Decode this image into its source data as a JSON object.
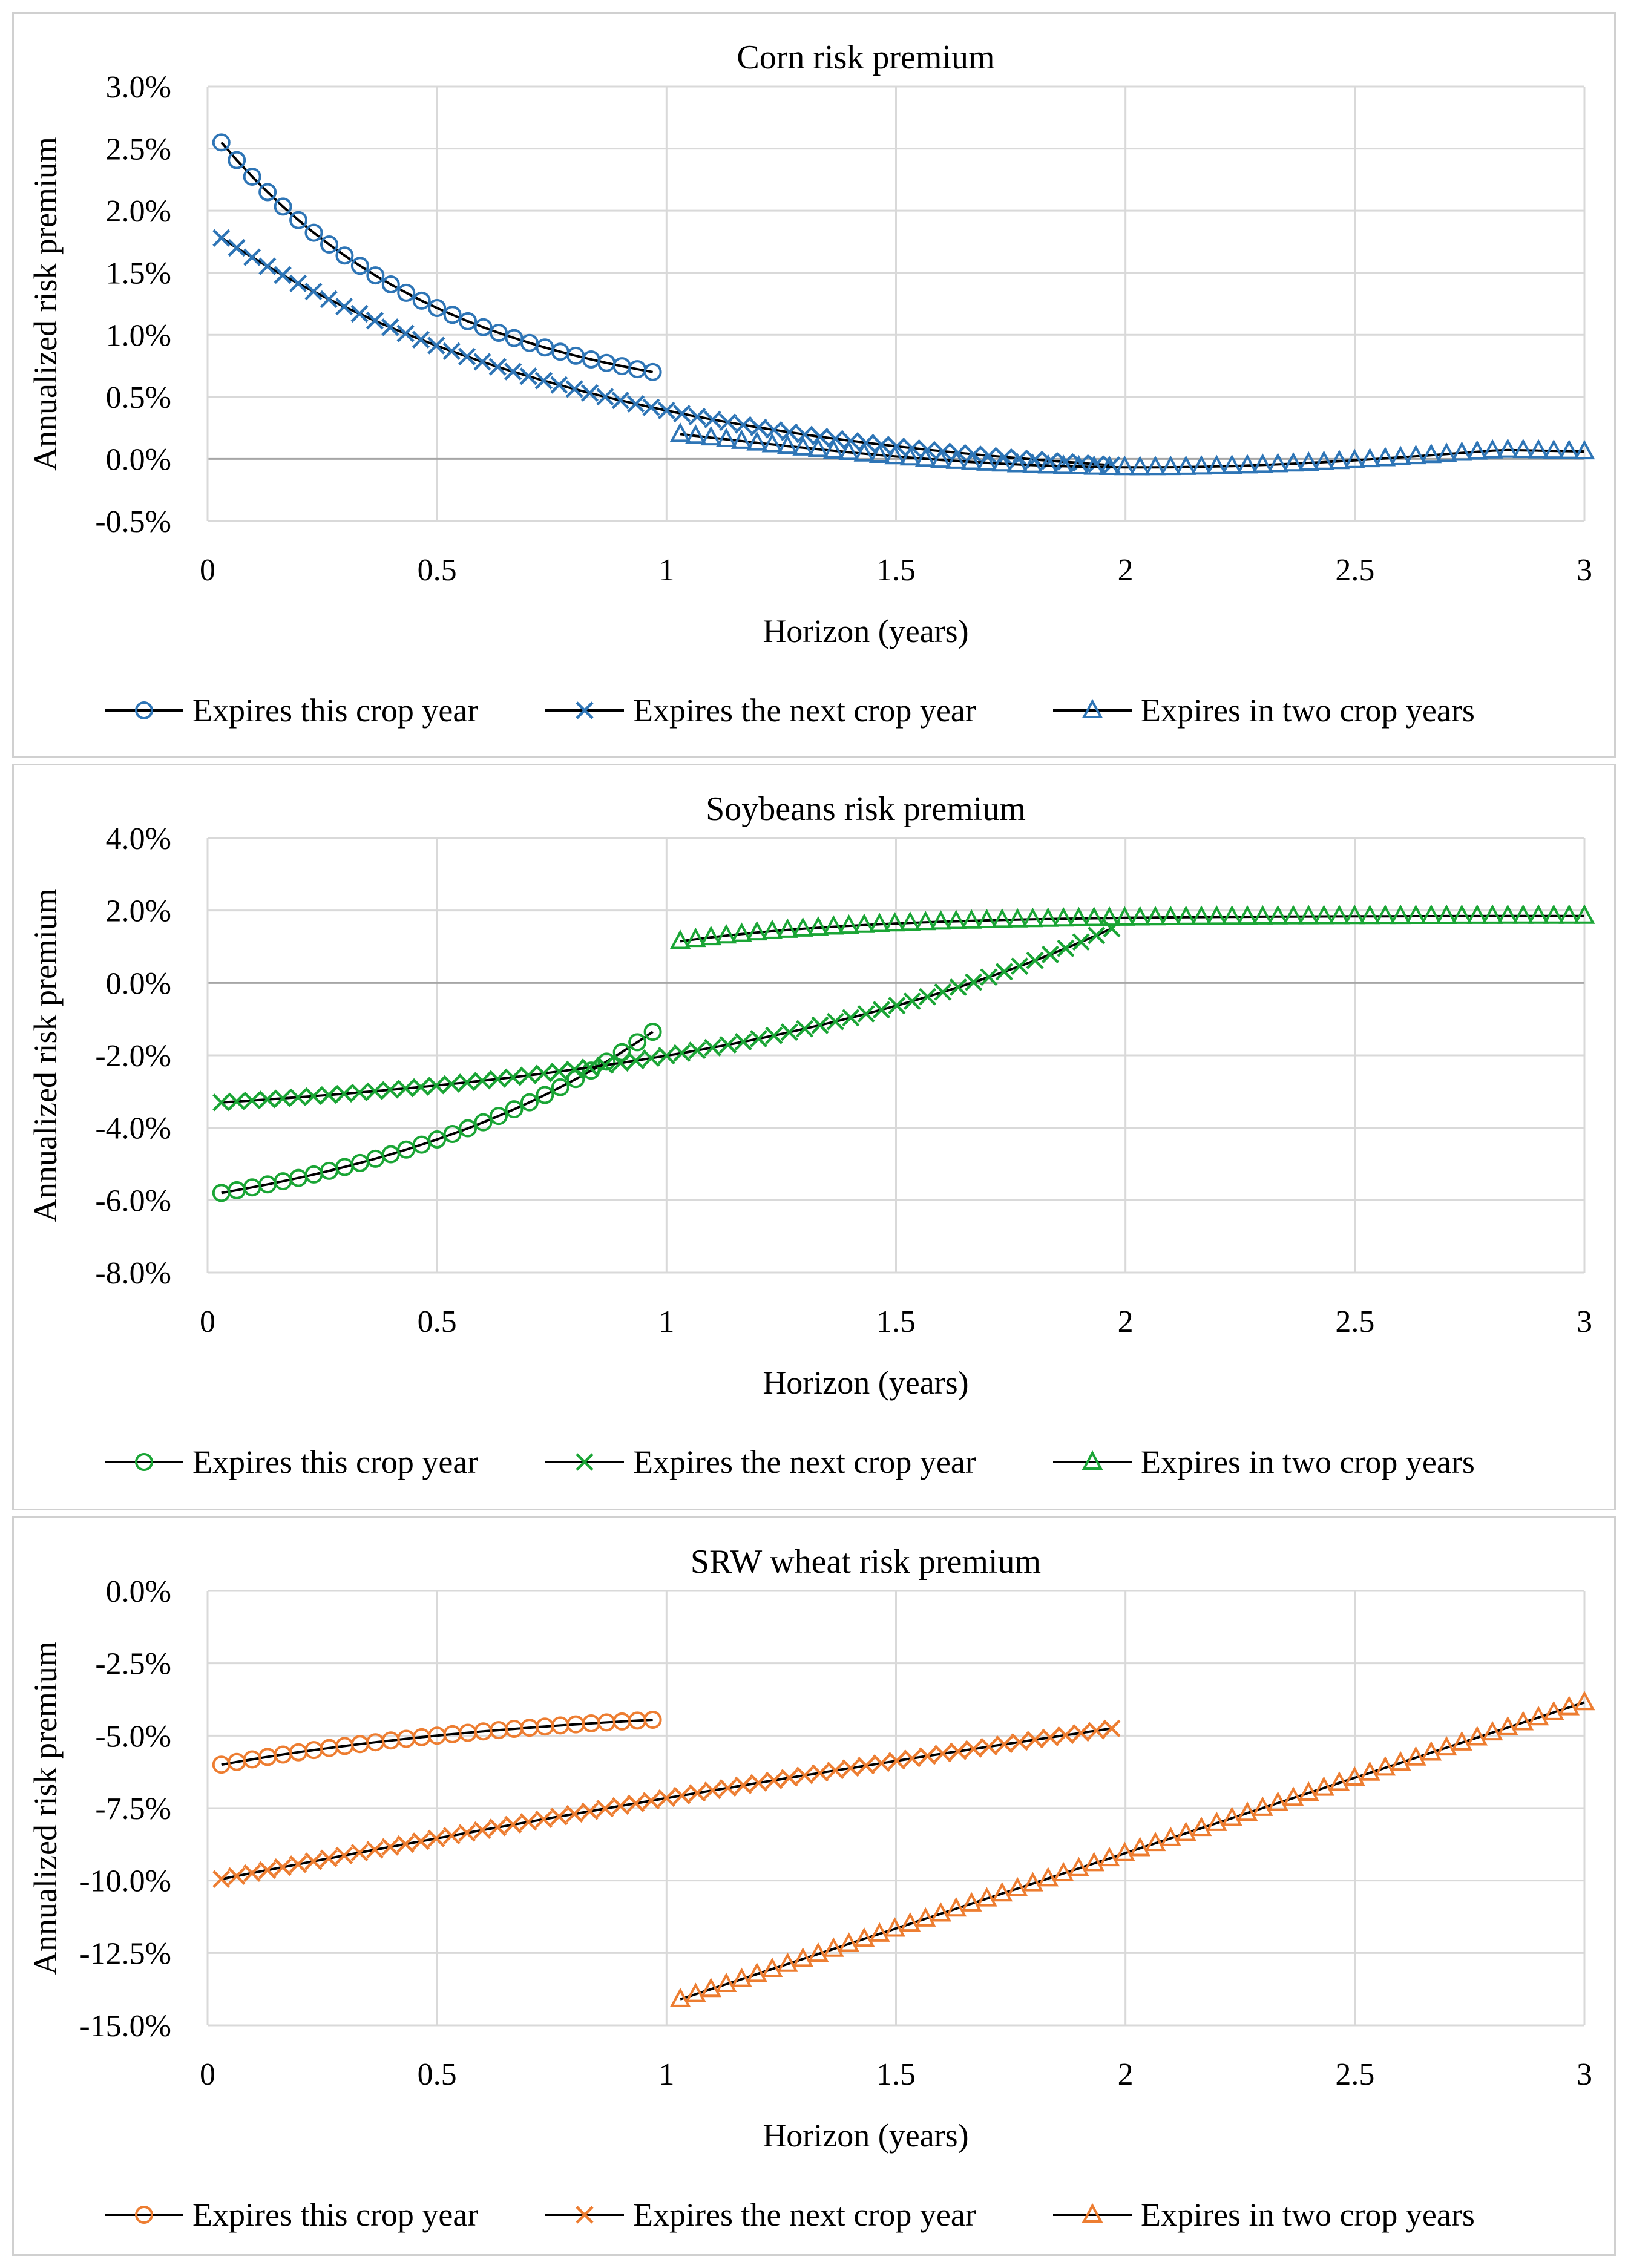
{
  "chart_data": [
    {
      "type": "line",
      "title": "Corn risk premium",
      "xlabel": "Horizon (years)",
      "ylabel": "Annualized risk premium",
      "xlim": [
        0,
        3
      ],
      "ylim": [
        -0.5,
        3.0
      ],
      "x_ticks": [
        0,
        0.5,
        1,
        1.5,
        2,
        2.5,
        3
      ],
      "x_tick_labels": [
        "0",
        "0.5",
        "1",
        "1.5",
        "2",
        "2.5",
        "3"
      ],
      "y_ticks": [
        -0.5,
        0,
        0.5,
        1,
        1.5,
        2,
        2.5,
        3
      ],
      "y_tick_labels": [
        "-0.5%",
        "0.0%",
        "0.5%",
        "1.0%",
        "1.5%",
        "2.0%",
        "2.5%",
        "3.0%"
      ],
      "gridlines": true,
      "legend_position": "bottom",
      "color": "#2e75b6",
      "series": [
        {
          "name": "Expires this crop year",
          "marker": "circle",
          "x_start": 0.03,
          "x_end": 0.97,
          "count": 29,
          "y_start": 2.55,
          "y_end": 0.7,
          "curve": 1.9
        },
        {
          "name": "Expires the next crop year",
          "marker": "x",
          "x_start": 0.03,
          "x_end": 1.97,
          "count": 59,
          "y_start": 1.78,
          "y_end": -0.05,
          "curve": 2.3,
          "floor": -0.05
        },
        {
          "name": "Expires in two crop years",
          "marker": "triangle",
          "x_start": 1.03,
          "x_end": 3.0,
          "count": 60,
          "y_start": 0.2,
          "y_end": 0.06,
          "curve": 0,
          "dip": 0.2
        }
      ]
    },
    {
      "type": "line",
      "title": "Soybeans risk premium",
      "xlabel": "Horizon (years)",
      "ylabel": "Annualized risk premium",
      "xlim": [
        0,
        3
      ],
      "ylim": [
        -8.0,
        4.0
      ],
      "x_ticks": [
        0,
        0.5,
        1,
        1.5,
        2,
        2.5,
        3
      ],
      "x_tick_labels": [
        "0",
        "0.5",
        "1",
        "1.5",
        "2",
        "2.5",
        "3"
      ],
      "y_ticks": [
        -8,
        -6,
        -4,
        -2,
        0,
        2,
        4
      ],
      "y_tick_labels": [
        "-8.0%",
        "-6.0%",
        "-4.0%",
        "-2.0%",
        "0.0%",
        "2.0%",
        "4.0%"
      ],
      "gridlines": true,
      "legend_position": "bottom",
      "color": "#1aa535",
      "series": [
        {
          "name": "Expires this crop year",
          "marker": "circle",
          "x_start": 0.03,
          "x_end": 0.97,
          "count": 29,
          "y_start": -5.8,
          "y_end": -1.35,
          "curve": -1.4
        },
        {
          "name": "Expires the next crop year",
          "marker": "x",
          "x_start": 0.03,
          "x_end": 1.97,
          "count": 59,
          "y_start": -3.3,
          "y_end": 1.5,
          "curve": -2.0
        },
        {
          "name": "Expires in two crop years",
          "marker": "triangle",
          "x_start": 1.03,
          "x_end": 3.0,
          "count": 60,
          "y_start": 1.15,
          "y_end": 1.8,
          "curve": 0,
          "hump": [
            1.0,
            1.85,
            4.0
          ]
        }
      ]
    },
    {
      "type": "line",
      "title": "SRW wheat risk premium",
      "xlabel": "Horizon (years)",
      "ylabel": "Annualized risk premium",
      "xlim": [
        0,
        3
      ],
      "ylim": [
        -15.0,
        0.0
      ],
      "x_ticks": [
        0,
        0.5,
        1,
        1.5,
        2,
        2.5,
        3
      ],
      "x_tick_labels": [
        "0",
        "0.5",
        "1",
        "1.5",
        "2",
        "2.5",
        "3"
      ],
      "y_ticks": [
        -15,
        -12.5,
        -10,
        -7.5,
        -5,
        -2.5,
        0
      ],
      "y_tick_labels": [
        "-15.0%",
        "-12.5%",
        "-10.0%",
        "-7.5%",
        "-5.0%",
        "-2.5%",
        "0.0%"
      ],
      "gridlines": true,
      "legend_position": "bottom",
      "color": "#ed7d31",
      "series": [
        {
          "name": "Expires this crop year",
          "marker": "circle",
          "x_start": 0.03,
          "x_end": 0.97,
          "count": 29,
          "y_start": -6.0,
          "y_end": -4.45,
          "curve": 1.2
        },
        {
          "name": "Expires the next crop year",
          "marker": "x",
          "x_start": 0.03,
          "x_end": 1.97,
          "count": 59,
          "y_start": -9.95,
          "y_end": -4.75,
          "curve": 0.3
        },
        {
          "name": "Expires in two crop years",
          "marker": "triangle",
          "x_start": 1.03,
          "x_end": 3.0,
          "count": 60,
          "y_start": -14.1,
          "y_end": -3.85,
          "curve": 0
        }
      ]
    }
  ]
}
